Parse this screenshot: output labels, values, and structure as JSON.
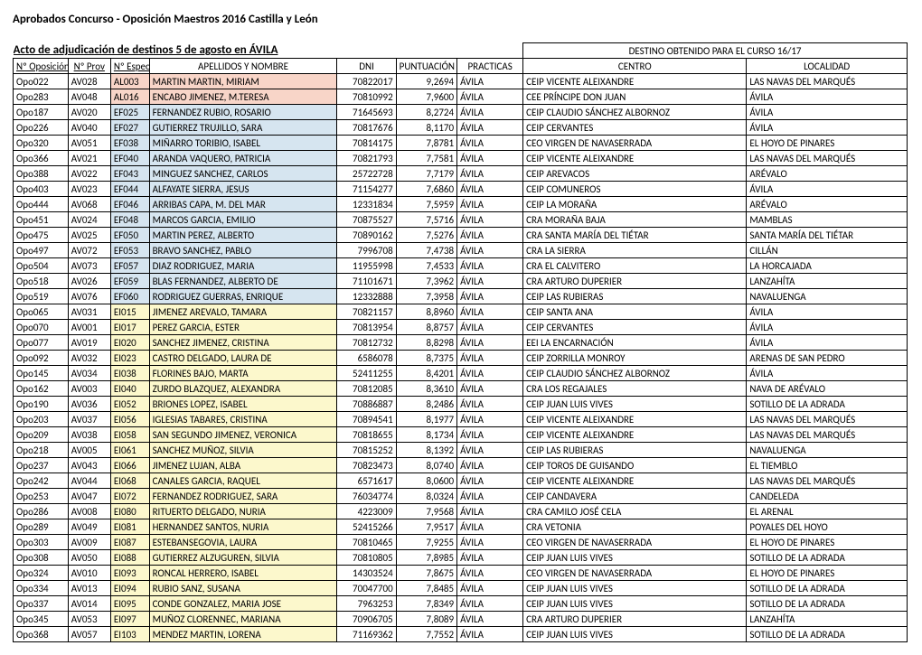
{
  "title": "Aprobados Concurso - Oposición Maestros 2016 Castilla y León",
  "subtitle": "Acto de adjudicación de destinos 5 de agosto en ÁVILA",
  "destHeader": "DESTINO OBTENIDO PARA EL CURSO 16/17",
  "headers": {
    "oposicion": "Nº Oposición",
    "prov": "Nº Prov",
    "espec": "Nº Espec",
    "nombre": "APELLIDOS Y NOMBRE",
    "dni": "DNI",
    "puntuacion": "PUNTUACIÓN",
    "practicas": "PRACTICAS",
    "centro": "CENTRO",
    "localidad": "LOCALIDAD"
  },
  "rows": [
    {
      "opo": "Opo022",
      "prov": "AV028",
      "espec": "AL003",
      "nombre": "MARTIN MARTIN, MIRIAM",
      "dni": "70822017",
      "punt": "9,2694",
      "pract": "ÁVILA",
      "centro": "CEIP VICENTE ALEIXANDRE",
      "local": "LAS NAVAS DEL MARQUÉS",
      "hl": "pink"
    },
    {
      "opo": "Opo283",
      "prov": "AV048",
      "espec": "AL016",
      "nombre": "ENCABO JIMENEZ, M.TERESA",
      "dni": "70810992",
      "punt": "7,9600",
      "pract": "ÁVILA",
      "centro": "CEE PRÍNCIPE DON JUAN",
      "local": "ÁVILA",
      "hl": "pink"
    },
    {
      "opo": "Opo187",
      "prov": "AV020",
      "espec": "EF025",
      "nombre": "FERNANDEZ RUBIO, ROSARIO",
      "dni": "71645693",
      "punt": "8,2724",
      "pract": "ÁVILA",
      "centro": "CEIP CLAUDIO SÁNCHEZ ALBORNOZ",
      "local": "ÁVILA",
      "hl": "blue"
    },
    {
      "opo": "Opo226",
      "prov": "AV040",
      "espec": "EF027",
      "nombre": "GUTIERREZ TRUJILLO, SARA",
      "dni": "70817676",
      "punt": "8,1170",
      "pract": "ÁVILA",
      "centro": "CEIP CERVANTES",
      "local": "ÁVILA",
      "hl": "blue"
    },
    {
      "opo": "Opo320",
      "prov": "AV051",
      "espec": "EF038",
      "nombre": "MIÑARRO TORIBIO, ISABEL",
      "dni": "70814175",
      "punt": "7,8781",
      "pract": "ÁVILA",
      "centro": "CEO VIRGEN DE NAVASERRADA",
      "local": "EL HOYO DE PINARES",
      "hl": "blue"
    },
    {
      "opo": "Opo366",
      "prov": "AV021",
      "espec": "EF040",
      "nombre": "ARANDA VAQUERO, PATRICIA",
      "dni": "70821793",
      "punt": "7,7581",
      "pract": "ÁVILA",
      "centro": "CEIP VICENTE ALEIXANDRE",
      "local": "LAS NAVAS DEL MARQUÉS",
      "hl": "blue"
    },
    {
      "opo": "Opo388",
      "prov": "AV022",
      "espec": "EF043",
      "nombre": "MINGUEZ SANCHEZ, CARLOS",
      "dni": "25722728",
      "punt": "7,7179",
      "pract": "ÁVILA",
      "centro": "CEIP AREVACOS",
      "local": "ARÉVALO",
      "hl": "blue"
    },
    {
      "opo": "Opo403",
      "prov": "AV023",
      "espec": "EF044",
      "nombre": "ALFAYATE SIERRA, JESUS",
      "dni": "71154277",
      "punt": "7,6860",
      "pract": "ÁVILA",
      "centro": "CEIP COMUNEROS",
      "local": "ÁVILA",
      "hl": "blue"
    },
    {
      "opo": "Opo444",
      "prov": "AV068",
      "espec": "EF046",
      "nombre": "ARRIBAS CAPA, M. DEL MAR",
      "dni": "12331834",
      "punt": "7,5959",
      "pract": "ÁVILA",
      "centro": "CEIP LA MORAÑA",
      "local": "ARÉVALO",
      "hl": "blue"
    },
    {
      "opo": "Opo451",
      "prov": "AV024",
      "espec": "EF048",
      "nombre": "MARCOS GARCIA, EMILIO",
      "dni": "70875527",
      "punt": "7,5716",
      "pract": "ÁVILA",
      "centro": "CRA MORAÑA BAJA",
      "local": "MAMBLAS",
      "hl": "blue"
    },
    {
      "opo": "Opo475",
      "prov": "AV025",
      "espec": "EF050",
      "nombre": "MARTIN PEREZ, ALBERTO",
      "dni": "70890162",
      "punt": "7,5276",
      "pract": "ÁVILA",
      "centro": "CRA SANTA MARÍA DEL TIÉTAR",
      "local": "SANTA MARÍA DEL TIÉTAR",
      "hl": "blue"
    },
    {
      "opo": "Opo497",
      "prov": "AV072",
      "espec": "EF053",
      "nombre": "BRAVO SANCHEZ, PABLO",
      "dni": "7996708",
      "punt": "7,4738",
      "pract": "ÁVILA",
      "centro": "CRA LA SIERRA",
      "local": "CILLÁN",
      "hl": "blue"
    },
    {
      "opo": "Opo504",
      "prov": "AV073",
      "espec": "EF057",
      "nombre": "DIAZ RODRIGUEZ, MARIA",
      "dni": "11955998",
      "punt": "7,4533",
      "pract": "ÁVILA",
      "centro": "CRA EL CALVITERO",
      "local": "LA HORCAJADA",
      "hl": "blue"
    },
    {
      "opo": "Opo518",
      "prov": "AV026",
      "espec": "EF059",
      "nombre": "BLAS FERNANDEZ, ALBERTO DE",
      "dni": "71101671",
      "punt": "7,3962",
      "pract": "ÁVILA",
      "centro": "CRA ARTURO DUPERIER",
      "local": "LANZAHÍTA",
      "hl": "blue"
    },
    {
      "opo": "Opo519",
      "prov": "AV076",
      "espec": "EF060",
      "nombre": "RODRIGUEZ GUERRAS, ENRIQUE",
      "dni": "12332888",
      "punt": "7,3958",
      "pract": "ÁVILA",
      "centro": "CEIP LAS RUBIERAS",
      "local": "NAVALUENGA",
      "hl": "blue"
    },
    {
      "opo": "Opo065",
      "prov": "AV031",
      "espec": "EI015",
      "nombre": "JIMENEZ AREVALO, TAMARA",
      "dni": "70821157",
      "punt": "8,8960",
      "pract": "ÁVILA",
      "centro": "CEIP SANTA ANA",
      "local": "ÁVILA",
      "hl": "yellow"
    },
    {
      "opo": "Opo070",
      "prov": "AV001",
      "espec": "EI017",
      "nombre": "PEREZ GARCIA, ESTER",
      "dni": "70813954",
      "punt": "8,8757",
      "pract": "ÁVILA",
      "centro": "CEIP CERVANTES",
      "local": "ÁVILA",
      "hl": "yellow"
    },
    {
      "opo": "Opo077",
      "prov": "AV019",
      "espec": "EI020",
      "nombre": "SANCHEZ JIMENEZ, CRISTINA",
      "dni": "70812732",
      "punt": "8,8298",
      "pract": "ÁVILA",
      "centro": "EEI LA ENCARNACIÓN",
      "local": "ÁVILA",
      "hl": "yellow"
    },
    {
      "opo": "Opo092",
      "prov": "AV032",
      "espec": "EI023",
      "nombre": "CASTRO DELGADO, LAURA DE",
      "dni": "6586078",
      "punt": "8,7375",
      "pract": "ÁVILA",
      "centro": "CEIP ZORRILLA MONROY",
      "local": "ARENAS DE SAN PEDRO",
      "hl": "yellow"
    },
    {
      "opo": "Opo145",
      "prov": "AV034",
      "espec": "EI038",
      "nombre": "FLORINES BAJO, MARTA",
      "dni": "52411255",
      "punt": "8,4201",
      "pract": "ÁVILA",
      "centro": "CEIP CLAUDIO SÁNCHEZ ALBORNOZ",
      "local": "ÁVILA",
      "hl": "yellow"
    },
    {
      "opo": "Opo162",
      "prov": "AV003",
      "espec": "EI040",
      "nombre": "ZURDO BLAZQUEZ, ALEXANDRA",
      "dni": "70812085",
      "punt": "8,3610",
      "pract": "ÁVILA",
      "centro": "CRA LOS REGAJALES",
      "local": "NAVA DE ARÉVALO",
      "hl": "yellow"
    },
    {
      "opo": "Opo190",
      "prov": "AV036",
      "espec": "EI052",
      "nombre": "BRIONES LOPEZ, ISABEL",
      "dni": "70886887",
      "punt": "8,2486",
      "pract": "ÁVILA",
      "centro": "CEIP JUAN LUIS VIVES",
      "local": "SOTILLO DE LA ADRADA",
      "hl": "yellow"
    },
    {
      "opo": "Opo203",
      "prov": "AV037",
      "espec": "EI056",
      "nombre": "IGLESIAS TABARES, CRISTINA",
      "dni": "70894541",
      "punt": "8,1977",
      "pract": "ÁVILA",
      "centro": "CEIP VICENTE ALEIXANDRE",
      "local": "LAS NAVAS DEL MARQUÉS",
      "hl": "yellow"
    },
    {
      "opo": "Opo209",
      "prov": "AV038",
      "espec": "EI058",
      "nombre": "SAN SEGUNDO JIMENEZ, VERONICA",
      "dni": "70818655",
      "punt": "8,1734",
      "pract": "ÁVILA",
      "centro": "CEIP VICENTE ALEIXANDRE",
      "local": "LAS NAVAS DEL MARQUÉS",
      "hl": "yellow"
    },
    {
      "opo": "Opo218",
      "prov": "AV005",
      "espec": "EI061",
      "nombre": "SANCHEZ MUÑOZ, SILVIA",
      "dni": "70815252",
      "punt": "8,1392",
      "pract": "ÁVILA",
      "centro": "CEIP LAS RUBIERAS",
      "local": "NAVALUENGA",
      "hl": "yellow"
    },
    {
      "opo": "Opo237",
      "prov": "AV043",
      "espec": "EI066",
      "nombre": "JIMENEZ LUJAN, ALBA",
      "dni": "70823473",
      "punt": "8,0740",
      "pract": "ÁVILA",
      "centro": "CEIP TOROS DE GUISANDO",
      "local": "EL TIEMBLO",
      "hl": "yellow"
    },
    {
      "opo": "Opo242",
      "prov": "AV044",
      "espec": "EI068",
      "nombre": "CANALES GARCIA, RAQUEL",
      "dni": "6571617",
      "punt": "8,0600",
      "pract": "ÁVILA",
      "centro": "CEIP VICENTE ALEIXANDRE",
      "local": "LAS NAVAS DEL MARQUÉS",
      "hl": "yellow"
    },
    {
      "opo": "Opo253",
      "prov": "AV047",
      "espec": "EI072",
      "nombre": "FERNANDEZ RODRIGUEZ, SARA",
      "dni": "76034774",
      "punt": "8,0324",
      "pract": "ÁVILA",
      "centro": "CEIP CANDAVERA",
      "local": "CANDELEDA",
      "hl": "yellow"
    },
    {
      "opo": "Opo286",
      "prov": "AV008",
      "espec": "EI080",
      "nombre": "RITUERTO DELGADO, NURIA",
      "dni": "4223009",
      "punt": "7,9568",
      "pract": "ÁVILA",
      "centro": "CRA CAMILO JOSÉ CELA",
      "local": "EL ARENAL",
      "hl": "yellow"
    },
    {
      "opo": "Opo289",
      "prov": "AV049",
      "espec": "EI081",
      "nombre": "HERNANDEZ SANTOS, NURIA",
      "dni": "52415266",
      "punt": "7,9517",
      "pract": "ÁVILA",
      "centro": "CRA VETONIA",
      "local": "POYALES DEL HOYO",
      "hl": "yellow"
    },
    {
      "opo": "Opo303",
      "prov": "AV009",
      "espec": "EI087",
      "nombre": "ESTEBANSEGOVIA, LAURA",
      "dni": "70810465",
      "punt": "7,9255",
      "pract": "ÁVILA",
      "centro": "CEO VIRGEN DE NAVASERRADA",
      "local": "EL HOYO DE PINARES",
      "hl": "yellow"
    },
    {
      "opo": "Opo308",
      "prov": "AV050",
      "espec": "EI088",
      "nombre": "GUTIERREZ ALZUGUREN, SILVIA",
      "dni": "70810805",
      "punt": "7,8985",
      "pract": "ÁVILA",
      "centro": "CEIP JUAN LUIS VIVES",
      "local": "SOTILLO DE LA ADRADA",
      "hl": "yellow"
    },
    {
      "opo": "Opo324",
      "prov": "AV010",
      "espec": "EI093",
      "nombre": "RONCAL HERRERO, ISABEL",
      "dni": "14303524",
      "punt": "7,8675",
      "pract": "ÁVILA",
      "centro": "CEO VIRGEN DE NAVASERRADA",
      "local": "EL HOYO DE PINARES",
      "hl": "yellow"
    },
    {
      "opo": "Opo334",
      "prov": "AV013",
      "espec": "EI094",
      "nombre": "RUBIO SANZ, SUSANA",
      "dni": "70047700",
      "punt": "7,8485",
      "pract": "ÁVILA",
      "centro": "CEIP JUAN LUIS VIVES",
      "local": "SOTILLO DE LA ADRADA",
      "hl": "yellow"
    },
    {
      "opo": "Opo337",
      "prov": "AV014",
      "espec": "EI095",
      "nombre": "CONDE GONZALEZ, MARIA JOSE",
      "dni": "7963253",
      "punt": "7,8349",
      "pract": "ÁVILA",
      "centro": "CEIP JUAN LUIS VIVES",
      "local": "SOTILLO DE LA ADRADA",
      "hl": "yellow"
    },
    {
      "opo": "Opo345",
      "prov": "AV053",
      "espec": "EI097",
      "nombre": "MUÑOZ CLORENNEC, MARIANA",
      "dni": "70906705",
      "punt": "7,8089",
      "pract": "ÁVILA",
      "centro": "CRA ARTURO DUPERIER",
      "local": "LANZAHÍTA",
      "hl": "yellow"
    },
    {
      "opo": "Opo368",
      "prov": "AV057",
      "espec": "EI103",
      "nombre": "MENDEZ MARTIN, LORENA",
      "dni": "71169362",
      "punt": "7,7552",
      "pract": "ÁVILA",
      "centro": "CEIP JUAN LUIS VIVES",
      "local": "SOTILLO DE LA ADRADA",
      "hl": "yellow"
    }
  ]
}
